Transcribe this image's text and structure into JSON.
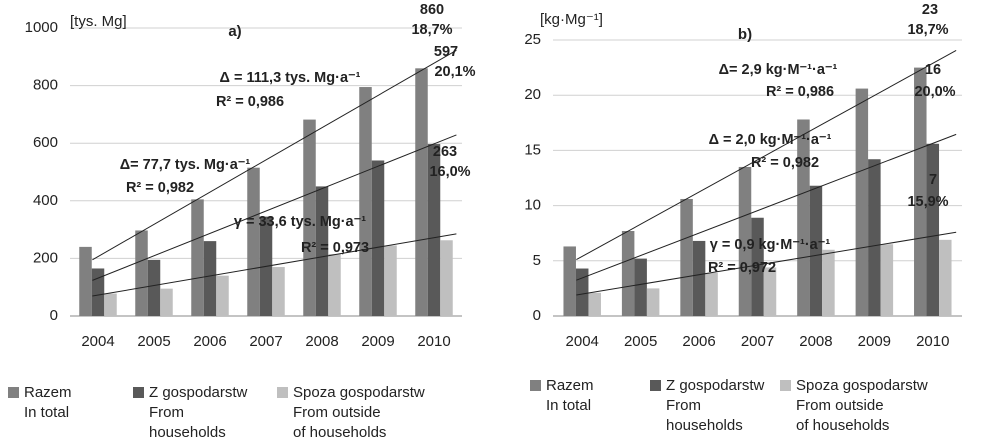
{
  "chart_data": [
    {
      "type": "bar",
      "panel": "a)",
      "unit": "[tys. Mg]",
      "categories": [
        "2004",
        "2005",
        "2006",
        "2007",
        "2008",
        "2009",
        "2010"
      ],
      "ylim": [
        0,
        1000
      ],
      "yticks": [
        0,
        200,
        400,
        600,
        800,
        1000
      ],
      "series": [
        {
          "name": "Razem",
          "name_en": [
            "In total"
          ],
          "color": "#808080",
          "values": [
            240,
            297,
            405,
            515,
            682,
            795,
            860
          ]
        },
        {
          "name": "Z gospodarstw",
          "name_en": [
            "From",
            "households"
          ],
          "color": "#595959",
          "values": [
            165,
            195,
            260,
            345,
            450,
            540,
            597
          ]
        },
        {
          "name": "Spoza gospodarstw",
          "name_en": [
            "From outside",
            "of households"
          ],
          "color": "#bfbfbf",
          "values": [
            78,
            95,
            140,
            170,
            215,
            245,
            263
          ]
        }
      ],
      "annotations": [
        "860",
        "18,7%",
        "597",
        "20,1%",
        "263",
        "16,0%",
        "Δ = 111,3 tys. Mg·a⁻¹",
        "R² = 0,986",
        "Δ= 77,7 tys. Mg·a⁻¹",
        "R² = 0,982",
        "γ = 33,6 tys. Mg·a⁻¹",
        "R² = 0,973"
      ]
    },
    {
      "type": "bar",
      "panel": "b)",
      "unit": "[kg·Mg⁻¹]",
      "categories": [
        "2004",
        "2005",
        "2006",
        "2007",
        "2008",
        "2009",
        "2010"
      ],
      "ylim": [
        0,
        25
      ],
      "yticks": [
        0,
        5,
        10,
        15,
        20,
        25
      ],
      "series": [
        {
          "name": "Razem",
          "name_en": [
            "In total"
          ],
          "color": "#808080",
          "values": [
            6.3,
            7.7,
            10.6,
            13.5,
            17.8,
            20.6,
            22.5
          ]
        },
        {
          "name": "Z gospodarstw",
          "name_en": [
            "From",
            "households"
          ],
          "color": "#595959",
          "values": [
            4.3,
            5.2,
            6.8,
            8.9,
            11.8,
            14.2,
            15.6
          ]
        },
        {
          "name": "Spoza gospodarstw",
          "name_en": [
            "From outside",
            "of households"
          ],
          "color": "#bfbfbf",
          "values": [
            2.1,
            2.5,
            3.9,
            4.4,
            6.0,
            6.5,
            6.9
          ]
        }
      ],
      "annotations": [
        "23",
        "18,7%",
        "16",
        "20,0%",
        "7",
        "15,9%",
        "Δ= 2,9 kg·M⁻¹·a⁻¹",
        "R² = 0,986",
        "Δ = 2,0 kg·M⁻¹·a⁻¹",
        "R² = 0,982",
        "γ = 0,9 kg·M⁻¹·a⁻¹",
        "R² = 0,972"
      ]
    }
  ]
}
